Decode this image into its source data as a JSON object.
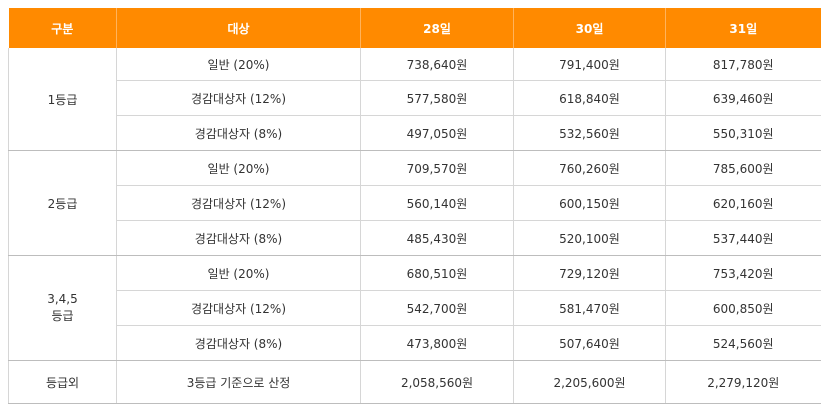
{
  "headers": [
    "구분",
    "대상",
    "28일",
    "30일",
    "31일"
  ],
  "groups": [
    {
      "grade": "1등급",
      "rows": [
        {
          "target": "일반 (20%)",
          "d28": "738,640원",
          "d30": "791,400원",
          "d31": "817,780원"
        },
        {
          "target": "경감대상자 (12%)",
          "d28": "577,580원",
          "d30": "618,840원",
          "d31": "639,460원"
        },
        {
          "target": "경감대상자 (8%)",
          "d28": "497,050원",
          "d30": "532,560원",
          "d31": "550,310원"
        }
      ]
    },
    {
      "grade": "2등급",
      "rows": [
        {
          "target": "일반 (20%)",
          "d28": "709,570원",
          "d30": "760,260원",
          "d31": "785,600원"
        },
        {
          "target": "경감대상자 (12%)",
          "d28": "560,140원",
          "d30": "600,150원",
          "d31": "620,160원"
        },
        {
          "target": "경감대상자 (8%)",
          "d28": "485,430원",
          "d30": "520,100원",
          "d31": "537,440원"
        }
      ]
    },
    {
      "grade_line1": "3,4,5",
      "grade_line2": "등급",
      "rows": [
        {
          "target": "일반 (20%)",
          "d28": "680,510원",
          "d30": "729,120원",
          "d31": "753,420원"
        },
        {
          "target": "경감대상자 (12%)",
          "d28": "542,700원",
          "d30": "581,470원",
          "d31": "600,850원"
        },
        {
          "target": "경감대상자 (8%)",
          "d28": "473,800원",
          "d30": "507,640원",
          "d31": "524,560원"
        }
      ]
    }
  ],
  "extra": {
    "grade": "등급외",
    "target": "3등급 기준으로 산정",
    "d28": "2,058,560원",
    "d30": "2,205,600원",
    "d31": "2,279,120원"
  },
  "colors": {
    "header_bg": "#ff8a00",
    "header_text": "#ffffff",
    "border": "#d6d6d6"
  }
}
